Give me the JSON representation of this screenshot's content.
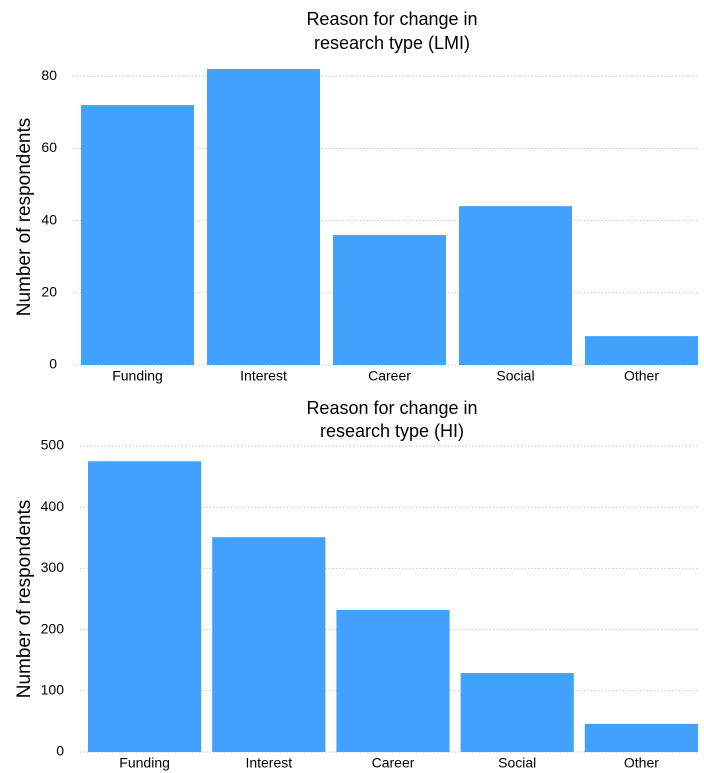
{
  "chart_data": [
    {
      "type": "bar",
      "title": [
        "Reason for change in",
        "research type (LMI)"
      ],
      "ylabel": "Number of respondents",
      "categories": [
        "Funding",
        "Interest",
        "Career",
        "Social",
        "Other"
      ],
      "values": [
        72,
        82,
        36,
        44,
        8
      ],
      "color": "#42a1fd",
      "ylim": [
        0,
        82
      ],
      "yticks": [
        0,
        20,
        40,
        60,
        80
      ],
      "grid": true
    },
    {
      "type": "bar",
      "title": [
        "Reason for change in",
        "research type (HI)"
      ],
      "ylabel": "Number of respondents",
      "categories": [
        "Funding",
        "Interest",
        "Career",
        "Social",
        "Other"
      ],
      "values": [
        475,
        351,
        232,
        129,
        46
      ],
      "color": "#42a1fd",
      "ylim": [
        0,
        500
      ],
      "yticks": [
        0,
        100,
        200,
        300,
        400,
        500
      ],
      "grid": true
    }
  ]
}
